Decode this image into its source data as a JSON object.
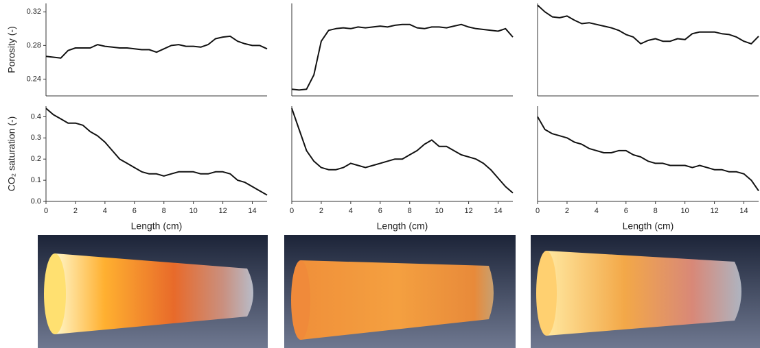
{
  "chart_data": [
    {
      "type": "line",
      "y_label": "Porosity (-)",
      "color": "#111111",
      "xlim": [
        0,
        15
      ],
      "ylim": [
        0.22,
        0.33
      ],
      "yticks": [
        0.24,
        0.28,
        0.32
      ],
      "x": [
        0,
        0.5,
        1,
        1.5,
        2,
        2.5,
        3,
        3.5,
        4,
        4.5,
        5,
        5.5,
        6,
        6.5,
        7,
        7.5,
        8,
        8.5,
        9,
        9.5,
        10,
        10.5,
        11,
        11.5,
        12,
        12.5,
        13,
        13.5,
        14,
        14.5,
        15
      ],
      "values": [
        0.267,
        0.266,
        0.265,
        0.274,
        0.277,
        0.277,
        0.277,
        0.281,
        0.279,
        0.278,
        0.277,
        0.277,
        0.276,
        0.275,
        0.275,
        0.272,
        0.276,
        0.28,
        0.281,
        0.279,
        0.279,
        0.278,
        0.281,
        0.288,
        0.29,
        0.291,
        0.285,
        0.282,
        0.28,
        0.28,
        0.276
      ]
    },
    {
      "type": "line",
      "color": "#111111",
      "xlim": [
        0,
        15
      ],
      "ylim": [
        0.22,
        0.33
      ],
      "x": [
        0,
        0.5,
        1,
        1.5,
        2,
        2.5,
        3,
        3.5,
        4,
        4.5,
        5,
        5.5,
        6,
        6.5,
        7,
        7.5,
        8,
        8.5,
        9,
        9.5,
        10,
        10.5,
        11,
        11.5,
        12,
        12.5,
        13,
        13.5,
        14,
        14.5,
        15
      ],
      "values": [
        0.228,
        0.227,
        0.228,
        0.245,
        0.285,
        0.298,
        0.3,
        0.301,
        0.3,
        0.302,
        0.301,
        0.302,
        0.303,
        0.302,
        0.304,
        0.305,
        0.305,
        0.301,
        0.3,
        0.302,
        0.302,
        0.301,
        0.303,
        0.305,
        0.302,
        0.3,
        0.299,
        0.298,
        0.297,
        0.3,
        0.29
      ]
    },
    {
      "type": "line",
      "color": "#111111",
      "xlim": [
        0,
        15
      ],
      "ylim": [
        0.22,
        0.33
      ],
      "x": [
        0,
        0.5,
        1,
        1.5,
        2,
        2.5,
        3,
        3.5,
        4,
        4.5,
        5,
        5.5,
        6,
        6.5,
        7,
        7.5,
        8,
        8.5,
        9,
        9.5,
        10,
        10.5,
        11,
        11.5,
        12,
        12.5,
        13,
        13.5,
        14,
        14.5,
        15
      ],
      "values": [
        0.328,
        0.32,
        0.314,
        0.313,
        0.315,
        0.31,
        0.306,
        0.307,
        0.305,
        0.303,
        0.301,
        0.298,
        0.293,
        0.29,
        0.282,
        0.286,
        0.288,
        0.285,
        0.285,
        0.288,
        0.287,
        0.294,
        0.296,
        0.296,
        0.296,
        0.294,
        0.293,
        0.29,
        0.285,
        0.282,
        0.291
      ]
    },
    {
      "type": "line",
      "y_label": "CO₂ saturation (-)",
      "x_label": "Length (cm)",
      "color": "#111111",
      "xlim": [
        0,
        15
      ],
      "ylim": [
        0,
        0.45
      ],
      "xticks": [
        0,
        2,
        4,
        6,
        8,
        10,
        12,
        14
      ],
      "yticks": [
        {
          "value": 0,
          "label": "0.0"
        },
        0.1,
        0.2,
        0.3,
        0.4
      ],
      "x": [
        0,
        0.5,
        1,
        1.5,
        2,
        2.5,
        3,
        3.5,
        4,
        4.5,
        5,
        5.5,
        6,
        6.5,
        7,
        7.5,
        8,
        8.5,
        9,
        9.5,
        10,
        10.5,
        11,
        11.5,
        12,
        12.5,
        13,
        13.5,
        14,
        14.5,
        15
      ],
      "values": [
        0.44,
        0.41,
        0.39,
        0.37,
        0.37,
        0.36,
        0.33,
        0.31,
        0.28,
        0.24,
        0.2,
        0.18,
        0.16,
        0.14,
        0.13,
        0.13,
        0.12,
        0.13,
        0.14,
        0.14,
        0.14,
        0.13,
        0.13,
        0.14,
        0.14,
        0.13,
        0.1,
        0.09,
        0.07,
        0.05,
        0.03
      ]
    },
    {
      "type": "line",
      "x_label": "Length (cm)",
      "color": "#111111",
      "xlim": [
        0,
        15
      ],
      "ylim": [
        0,
        0.45
      ],
      "xticks": [
        0,
        2,
        4,
        6,
        8,
        10,
        12,
        14
      ],
      "x": [
        0,
        0.5,
        1,
        1.5,
        2,
        2.5,
        3,
        3.5,
        4,
        4.5,
        5,
        5.5,
        6,
        6.5,
        7,
        7.5,
        8,
        8.5,
        9,
        9.5,
        10,
        10.5,
        11,
        11.5,
        12,
        12.5,
        13,
        13.5,
        14,
        14.5,
        15
      ],
      "values": [
        0.44,
        0.34,
        0.24,
        0.19,
        0.16,
        0.15,
        0.15,
        0.16,
        0.18,
        0.17,
        0.16,
        0.17,
        0.18,
        0.19,
        0.2,
        0.2,
        0.22,
        0.24,
        0.27,
        0.29,
        0.26,
        0.26,
        0.24,
        0.22,
        0.21,
        0.2,
        0.18,
        0.15,
        0.11,
        0.07,
        0.04
      ]
    },
    {
      "type": "line",
      "x_label": "Length (cm)",
      "color": "#111111",
      "xlim": [
        0,
        15
      ],
      "ylim": [
        0,
        0.45
      ],
      "xticks": [
        0,
        2,
        4,
        6,
        8,
        10,
        12,
        14
      ],
      "x": [
        0,
        0.5,
        1,
        1.5,
        2,
        2.5,
        3,
        3.5,
        4,
        4.5,
        5,
        5.5,
        6,
        6.5,
        7,
        7.5,
        8,
        8.5,
        9,
        9.5,
        10,
        10.5,
        11,
        11.5,
        12,
        12.5,
        13,
        13.5,
        14,
        14.5,
        15
      ],
      "values": [
        0.4,
        0.34,
        0.32,
        0.31,
        0.3,
        0.28,
        0.27,
        0.25,
        0.24,
        0.23,
        0.23,
        0.24,
        0.24,
        0.22,
        0.21,
        0.19,
        0.18,
        0.18,
        0.17,
        0.17,
        0.17,
        0.16,
        0.17,
        0.16,
        0.15,
        0.15,
        0.14,
        0.14,
        0.13,
        0.1,
        0.05
      ]
    }
  ]
}
